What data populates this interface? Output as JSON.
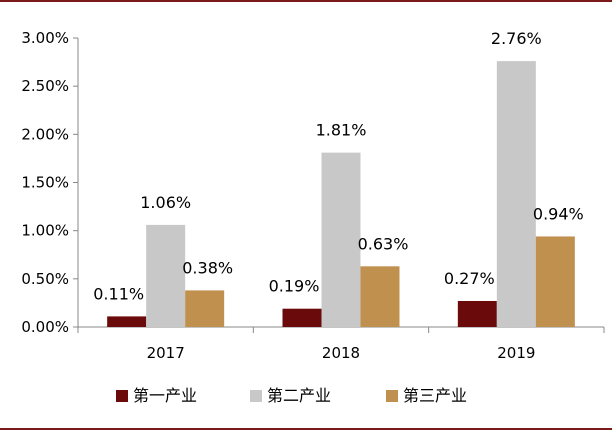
{
  "chart_data": {
    "type": "bar",
    "categories": [
      "2017",
      "2018",
      "2019"
    ],
    "series": [
      {
        "name": "第一产业",
        "values": [
          0.11,
          0.19,
          0.27
        ],
        "labels": [
          "0.11%",
          "0.19%",
          "0.27%"
        ],
        "color": "#6b0a0a"
      },
      {
        "name": "第二产业",
        "values": [
          1.06,
          1.81,
          2.76
        ],
        "labels": [
          "1.06%",
          "1.81%",
          "2.76%"
        ],
        "color": "#c8c8c8"
      },
      {
        "name": "第三产业",
        "values": [
          0.38,
          0.63,
          0.94
        ],
        "labels": [
          "0.38%",
          "0.63%",
          "0.94%"
        ],
        "color": "#c0904f"
      }
    ],
    "y_ticks": [
      0,
      0.5,
      1.0,
      1.5,
      2.0,
      2.5,
      3.0
    ],
    "y_tick_labels": [
      "0.00%",
      "0.50%",
      "1.00%",
      "1.50%",
      "2.00%",
      "2.50%",
      "3.00%"
    ],
    "ylim": [
      0,
      3.0
    ],
    "title": "",
    "xlabel": "",
    "ylabel": "",
    "grid": false,
    "legend_position": "bottom"
  },
  "colors": {
    "frame": "#7a1a1a",
    "axis": "#888888"
  }
}
